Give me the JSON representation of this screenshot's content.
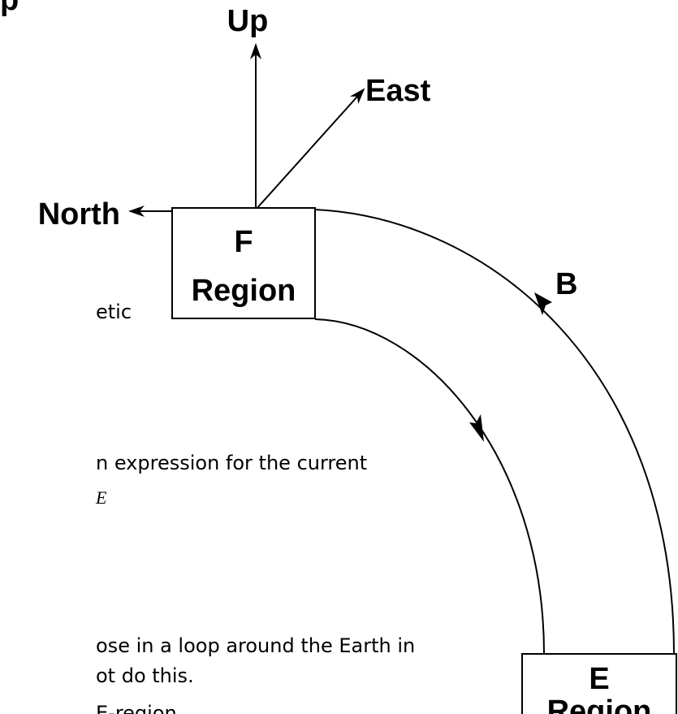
{
  "heading_fragment": "p",
  "axes": {
    "up": "Up",
    "east": "East",
    "north": "North"
  },
  "field_label": "B",
  "f_region": {
    "line1": "F",
    "line2": "Region"
  },
  "e_region": {
    "line1": "E",
    "line2": "Region"
  },
  "text_fragments": [
    "etic",
    "n expression for the current",
    "E",
    "ose in a loop around the Earth in",
    "ot do this.",
    "E-region"
  ]
}
